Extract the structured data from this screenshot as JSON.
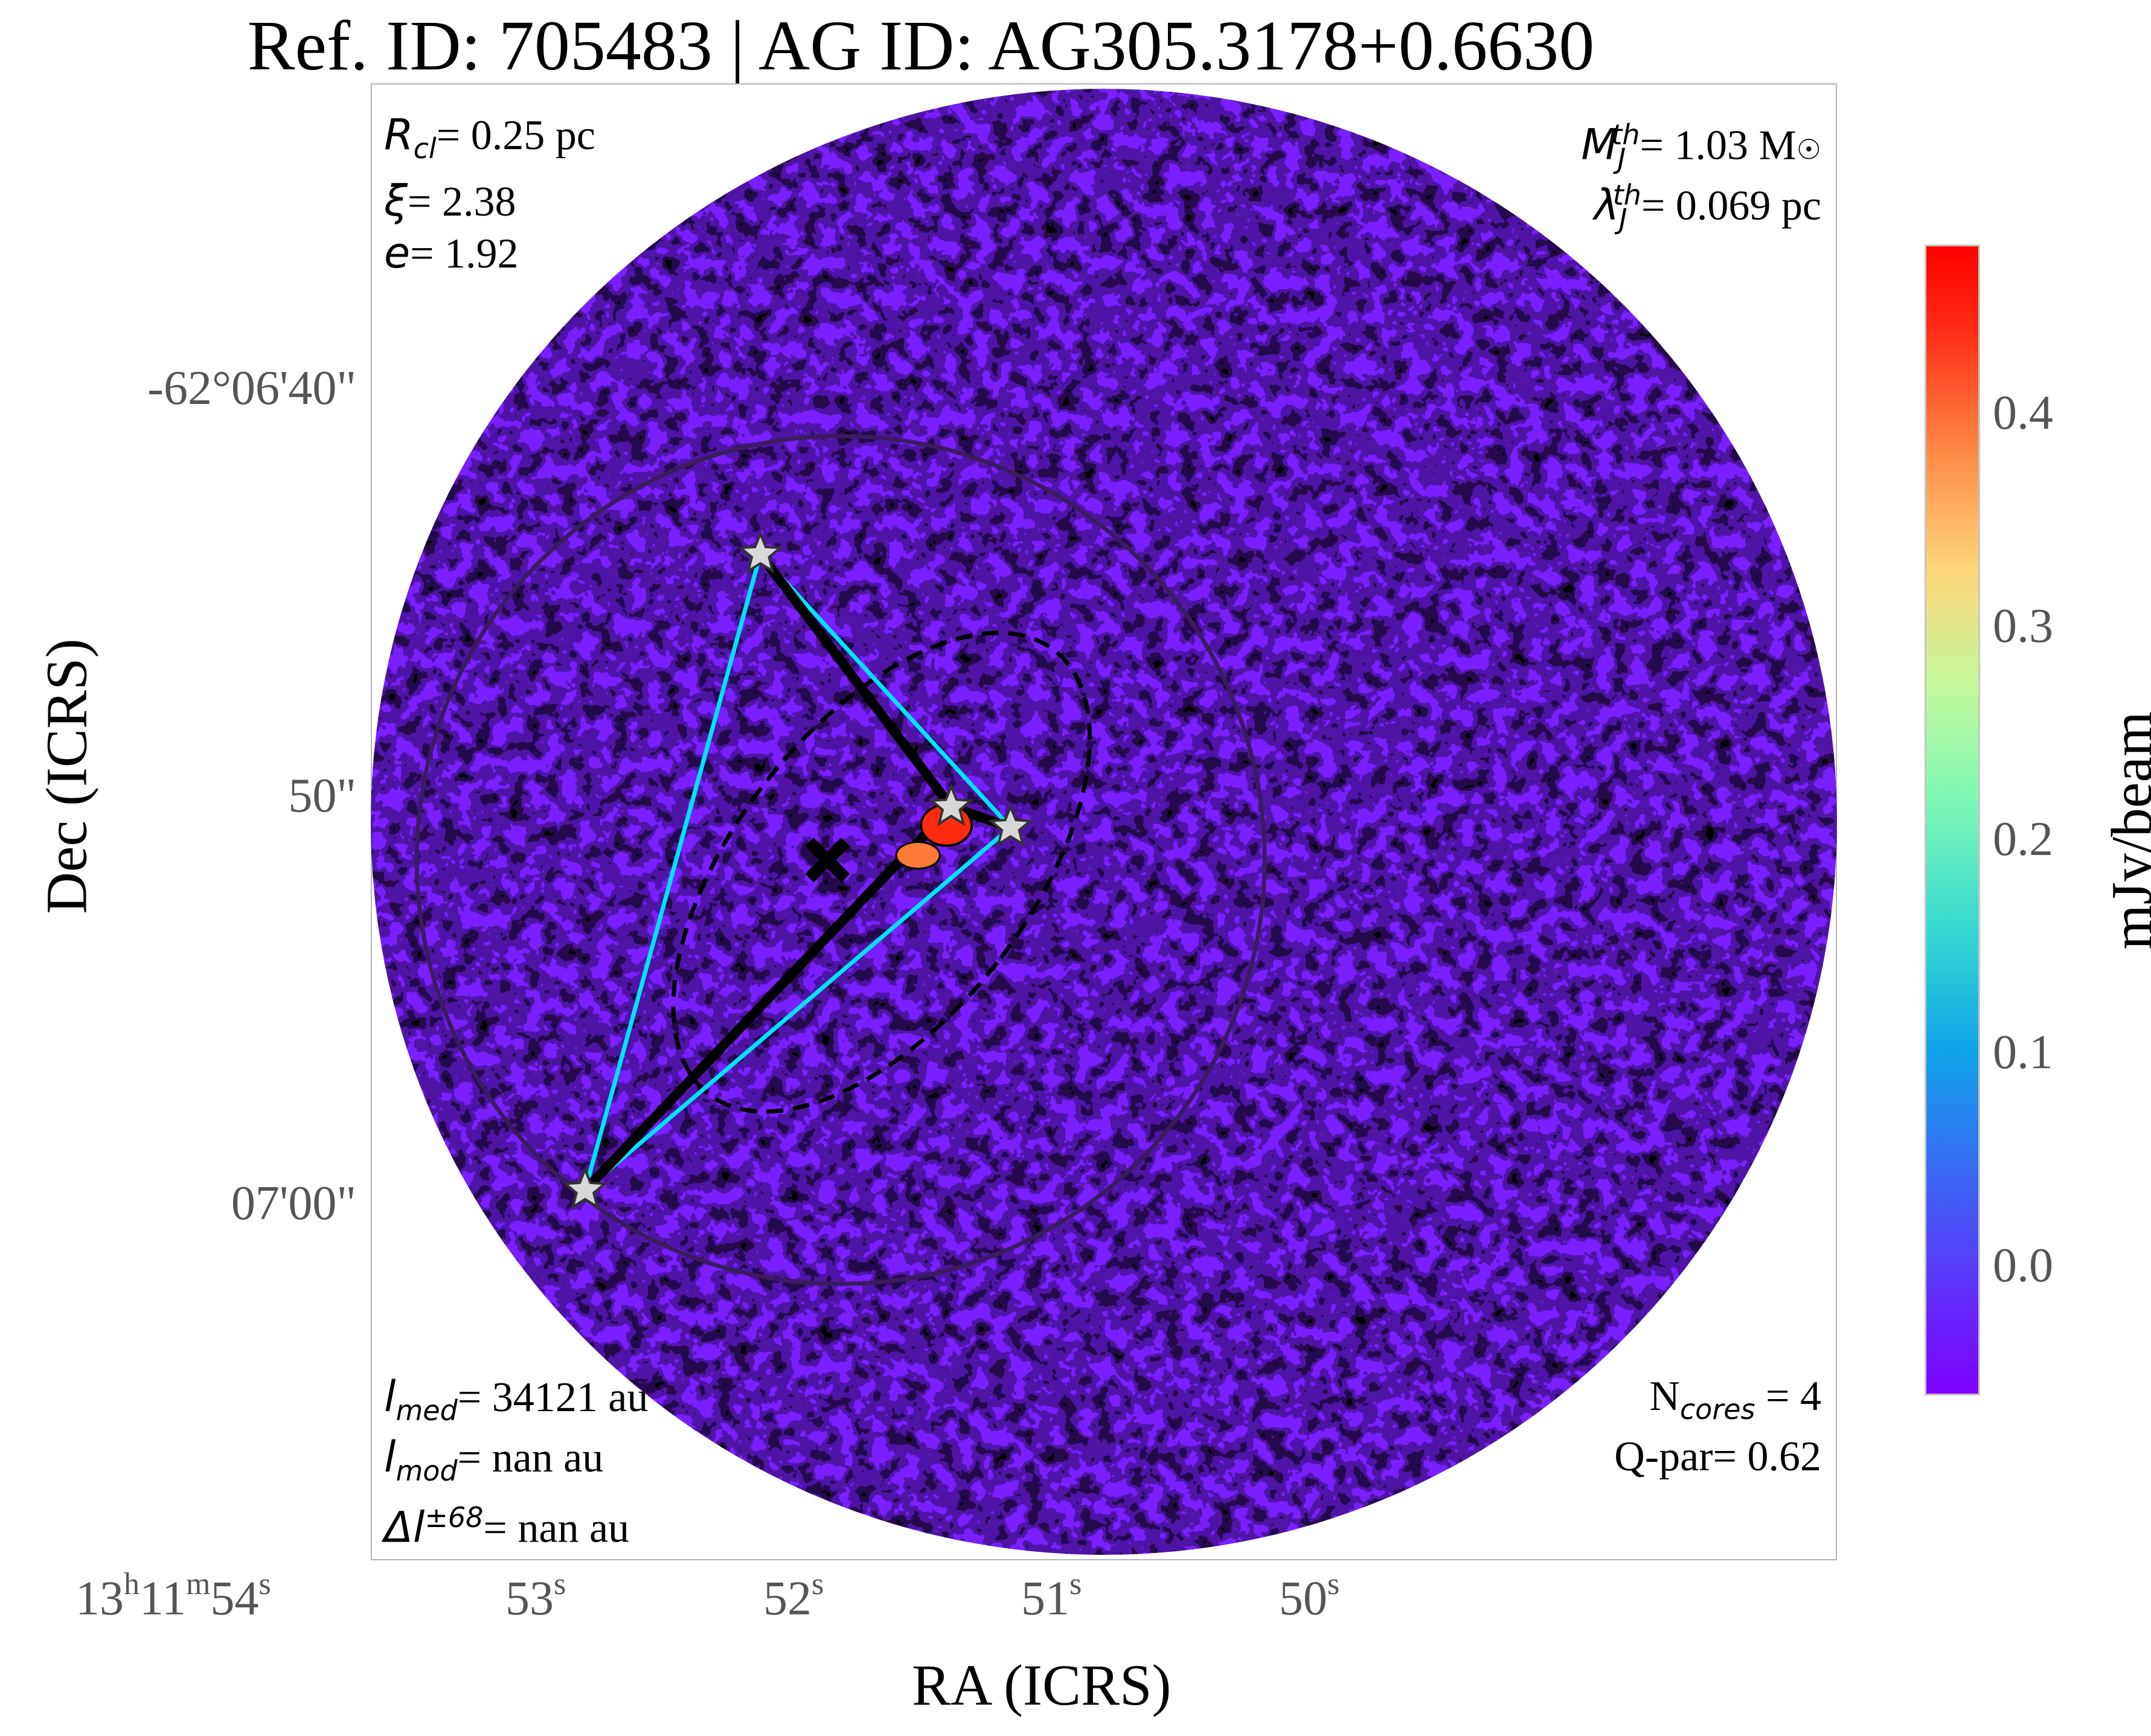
{
  "chart_data": {
    "type": "heatmap",
    "title": "Ref. ID: 705483 | AG ID: AG305.3178+0.6630",
    "xlabel": "RA (ICRS)",
    "ylabel": "Dec (ICRS)",
    "colorbar": {
      "label": "mJy/beam",
      "colormap": "rainbow",
      "range": [
        -0.06,
        0.48
      ],
      "ticks": [
        "0.0",
        "0.1",
        "0.2",
        "0.3",
        "0.4"
      ],
      "tick_values": [
        0.0,
        0.1,
        0.2,
        0.3,
        0.4
      ]
    },
    "x_ticks": [
      {
        "h": "13",
        "hs": "h",
        "m": "11",
        "ms": "m",
        "s": "54",
        "ss": "s",
        "ra_s": 54
      },
      {
        "s": "53",
        "ss": "s",
        "ra_s": 53
      },
      {
        "s": "52",
        "ss": "s",
        "ra_s": 52
      },
      {
        "s": "51",
        "ss": "s",
        "ra_s": 51
      },
      {
        "s": "50",
        "ss": "s",
        "ra_s": 50
      }
    ],
    "y_ticks": [
      {
        "label": "-62°06'40\"",
        "dec_arcsec": 400
      },
      {
        "label": "50\"",
        "dec_arcsec": 410
      },
      {
        "label": "07'00\"",
        "dec_arcsec": 420
      }
    ],
    "cores": [
      {
        "ra_s": 52.14,
        "dec_arcsec": 404.0
      },
      {
        "ra_s": 51.4,
        "dec_arcsec": 410.2
      },
      {
        "ra_s": 51.17,
        "dec_arcsec": 410.7
      },
      {
        "ra_s": 52.82,
        "dec_arcsec": 419.6
      }
    ],
    "mst_edges": [
      [
        0,
        1
      ],
      [
        1,
        2
      ],
      [
        1,
        3
      ]
    ],
    "hull_edges": [
      [
        0,
        2
      ],
      [
        2,
        3
      ],
      [
        3,
        0
      ]
    ],
    "center_ra_s": 51.88,
    "center_dec_arcsec": 411.5,
    "ellipse": {
      "center_ra_s": 51.67,
      "center_dec_arcsec": 411.8,
      "semi_major_arcsec": 6.9,
      "semi_minor_arcsec": 3.6,
      "angle_deg": -38
    },
    "cluster_radius_arcsec": 10.4,
    "colors": {
      "mst": "#000000",
      "hull": "#00e5ff",
      "circle": "#3b1b5e",
      "star_fill": "#d8d8d8"
    }
  },
  "annotations": {
    "rcl_sym": "R",
    "rcl_sub": "cl",
    "rcl_val": "= 0.25 pc",
    "xi_sym": "ξ",
    "xi_val": "= 2.38",
    "e_sym": "e",
    "e_val": "= 1.92",
    "mj_sym": "M",
    "mj_sup": "th",
    "mj_sub": "J",
    "mj_val": "= 1.03 M",
    "lj_sym": "λ",
    "lj_sup": "th",
    "lj_sub": "J",
    "lj_val": "= 0.069 pc",
    "lmed_sym": "l",
    "lmed_sub": "med",
    "lmed_val": "= 34121 au",
    "lmod_sym": "l",
    "lmod_sub": "mod",
    "lmod_val": "= nan au",
    "dl_sym": "Δl",
    "dl_sup": "±68",
    "dl_val": "= nan au",
    "ncores_pre": "N",
    "ncores_sub": "cores",
    "ncores_val": " = 4",
    "qpar": "Q-par= 0.62"
  }
}
